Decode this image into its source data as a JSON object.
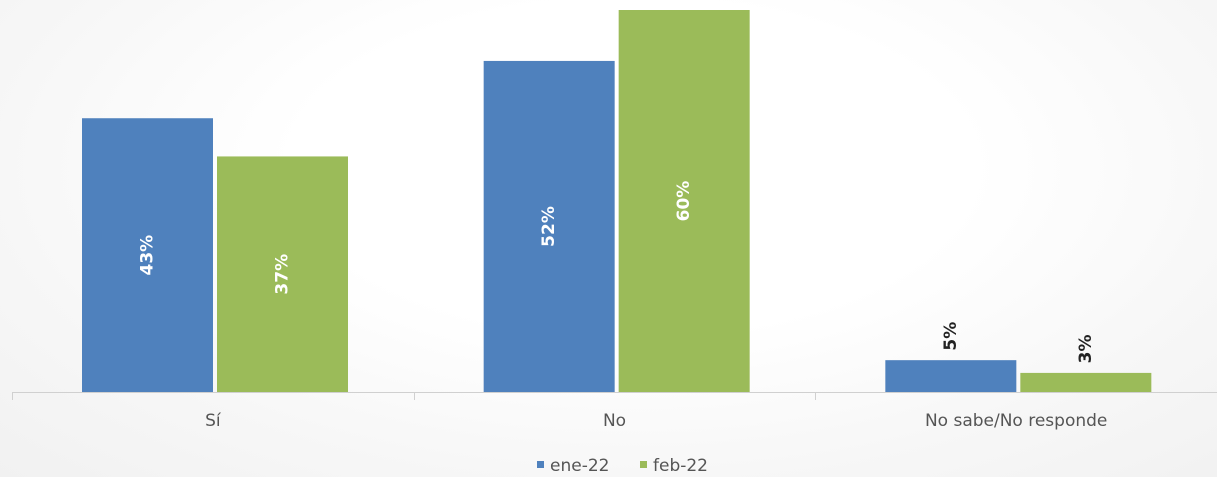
{
  "chart_data": {
    "type": "bar",
    "categories": [
      "Sí",
      "No",
      "No sabe/No responde"
    ],
    "series": [
      {
        "name": "ene-22",
        "values": [
          43,
          52,
          5
        ],
        "labels": [
          "43%",
          "52%",
          "5%"
        ],
        "color": "#4f81bd"
      },
      {
        "name": "feb-22",
        "values": [
          37,
          60,
          3
        ],
        "labels": [
          "37%",
          "60%",
          "3%"
        ],
        "color": "#9bbb59"
      }
    ],
    "ylim": [
      0,
      60
    ],
    "grid": false,
    "legend_position": "bottom",
    "data_label_rotation": "vertical"
  }
}
